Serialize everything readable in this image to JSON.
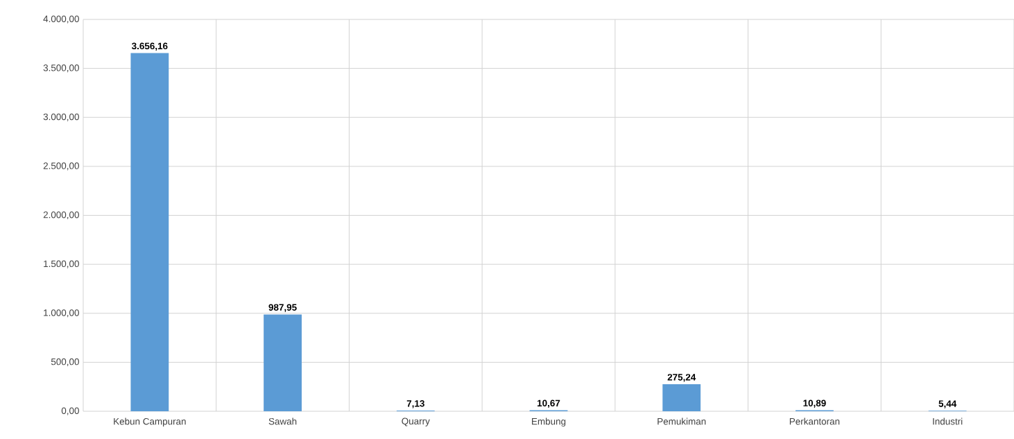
{
  "chart_data": {
    "type": "bar",
    "categories": [
      "Kebun Campuran",
      "Sawah",
      "Quarry",
      "Embung",
      "Pemukiman",
      "Perkantoran",
      "Industri"
    ],
    "values": [
      3656.16,
      987.95,
      7.13,
      10.67,
      275.24,
      10.89,
      5.44
    ],
    "value_labels": [
      "3.656,16",
      "987,95",
      "7,13",
      "10,67",
      "275,24",
      "10,89",
      "5,44"
    ],
    "color": "#5b9bd5",
    "ylim": [
      0,
      4000
    ],
    "yticks": [
      {
        "value": 0,
        "label": "0,00"
      },
      {
        "value": 500,
        "label": "500,00"
      },
      {
        "value": 1000,
        "label": "1.000,00"
      },
      {
        "value": 1500,
        "label": "1.500,00"
      },
      {
        "value": 2000,
        "label": "2.000,00"
      },
      {
        "value": 2500,
        "label": "2.500,00"
      },
      {
        "value": 3000,
        "label": "3.000,00"
      },
      {
        "value": 3500,
        "label": "3.500,00"
      },
      {
        "value": 4000,
        "label": "4.000,00"
      }
    ],
    "grid": true
  }
}
